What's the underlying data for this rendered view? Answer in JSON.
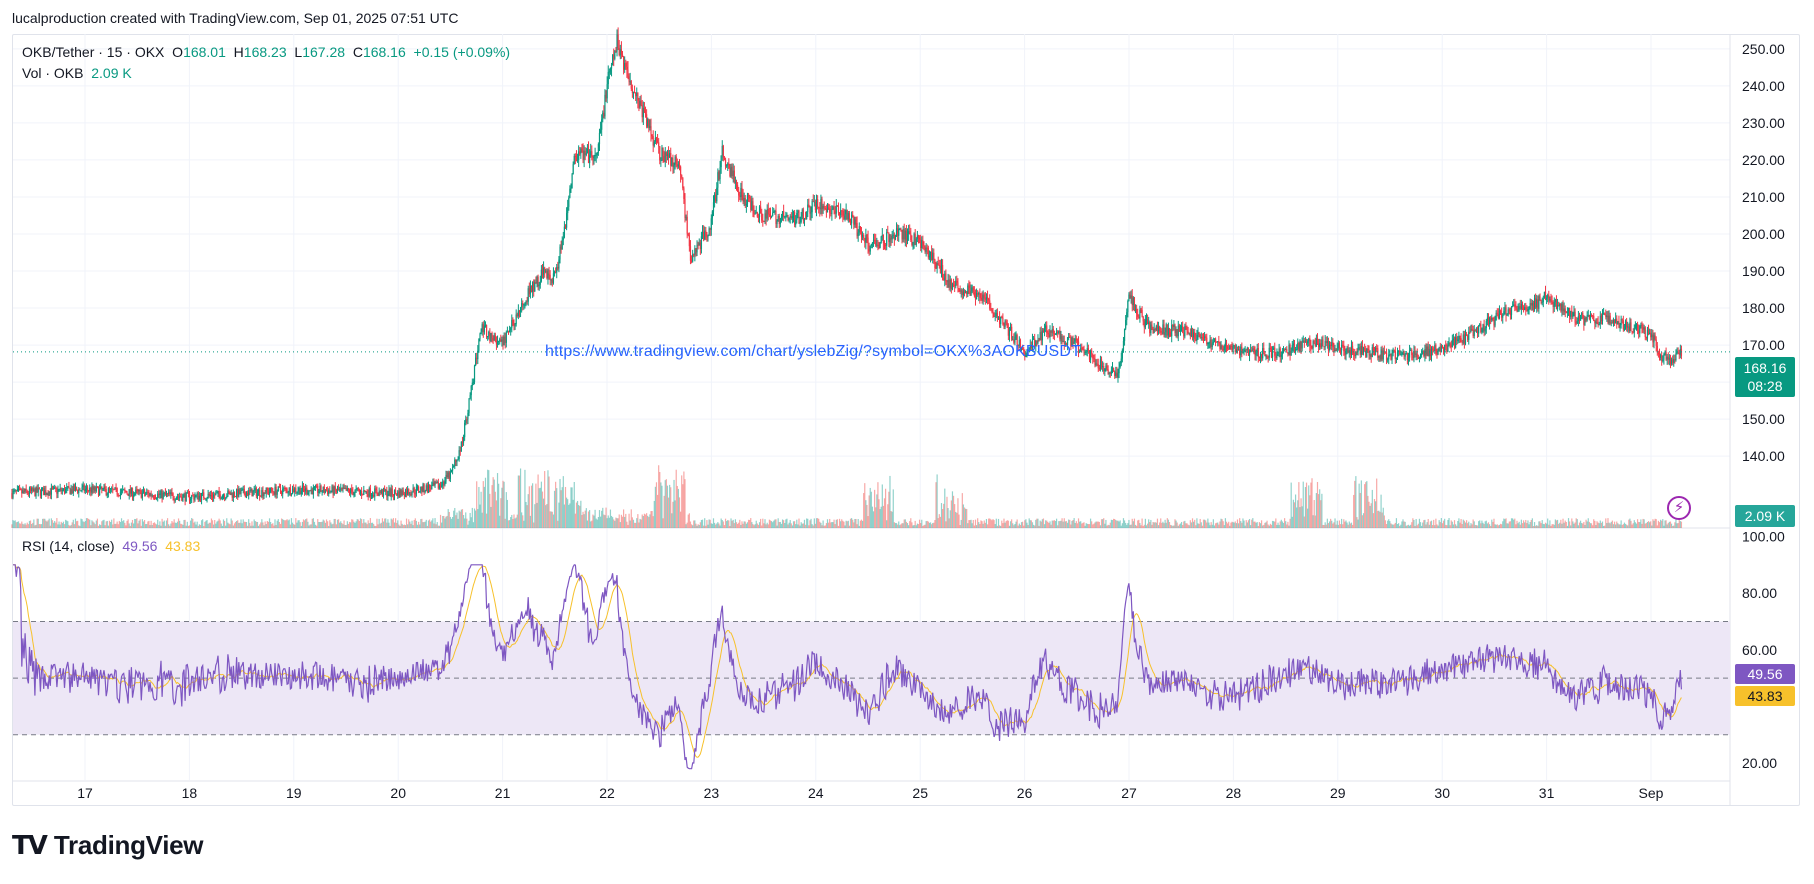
{
  "header": {
    "attribution": "lucalproduction created with TradingView.com, Sep 01, 2025 07:51 UTC"
  },
  "legend": {
    "symbol": "OKB/Tether · 15 · OKX",
    "open_label": "O",
    "open": "168.01",
    "high_label": "H",
    "high": "168.23",
    "low_label": "L",
    "low": "167.28",
    "close_label": "C",
    "close": "168.16",
    "change": "+0.15 (+0.09%)",
    "vol_label": "Vol · OKB",
    "vol_value": "2.09 K",
    "rsi_label": "RSI (14, close)",
    "rsi_value": "49.56",
    "rsi_ma_value": "43.83"
  },
  "url_text": "https://www.tradingview.com/chart/yslebZig/?symbol=OKX%3AOKBUSDT",
  "badges": {
    "price": "168.16",
    "countdown": "08:28",
    "volume": "2.09 K",
    "rsi": "49.56",
    "rsi_ma": "43.83"
  },
  "logo": {
    "mark": "TV",
    "name": "TradingView"
  },
  "colors": {
    "up": "#089981",
    "down": "#f23645",
    "vol_up": "#26a69a",
    "vol_down": "#ef5350",
    "rsi": "#7e57c2",
    "rsi_ma": "#f7c12b",
    "rsi_band": "#ede7f6",
    "grid": "#f0f3fa",
    "price_line": "#089981",
    "url": "#2962ff"
  },
  "chart_data": [
    {
      "type": "candlestick",
      "title": "OKB/Tether · 15 · OKX",
      "x_ticks": [
        "17",
        "18",
        "19",
        "20",
        "21",
        "22",
        "23",
        "24",
        "25",
        "26",
        "27",
        "28",
        "29",
        "30",
        "31",
        "Sep"
      ],
      "y_ticks": [
        "140.00",
        "150.00",
        "160.00",
        "170.00",
        "180.00",
        "190.00",
        "200.00",
        "210.00",
        "220.00",
        "230.00",
        "240.00",
        "250.00"
      ],
      "ylim": [
        126,
        254
      ],
      "last_price": 168.16,
      "price_path": {
        "x_day": [
          16.3,
          17.0,
          18.0,
          19.0,
          20.0,
          20.4,
          20.5,
          20.6,
          20.7,
          20.8,
          20.9,
          21.0,
          21.2,
          21.4,
          21.5,
          21.6,
          21.7,
          21.9,
          22.0,
          22.1,
          22.2,
          22.3,
          22.5,
          22.7,
          22.8,
          23.0,
          23.1,
          23.3,
          23.5,
          23.8,
          24.0,
          24.3,
          24.5,
          24.8,
          25.0,
          25.3,
          25.6,
          25.9,
          26.0,
          26.2,
          26.5,
          26.8,
          26.9,
          27.0,
          27.2,
          27.5,
          27.8,
          28.1,
          28.5,
          28.7,
          29.0,
          29.3,
          29.6,
          30.0,
          30.3,
          30.6,
          30.9,
          31.0,
          31.3,
          31.6,
          31.9,
          32.0,
          32.1,
          32.2,
          32.3
        ],
        "close": [
          130,
          131,
          129,
          131,
          130,
          132,
          135,
          142,
          158,
          175,
          172,
          170,
          182,
          190,
          188,
          203,
          222,
          220,
          240,
          252,
          243,
          236,
          222,
          218,
          193,
          203,
          222,
          210,
          205,
          204,
          208,
          205,
          197,
          200,
          198,
          186,
          183,
          172,
          168,
          174,
          170,
          163,
          162,
          183,
          174,
          174,
          171,
          168,
          168,
          171,
          169,
          168,
          167,
          169,
          173,
          179,
          181,
          183,
          177,
          177,
          174,
          173,
          167,
          166,
          168
        ]
      },
      "volume_peak_day": [
        20.9,
        21.3,
        21.6,
        22.6,
        24.6,
        25.3,
        28.7,
        29.3
      ],
      "ma_vol_label": "Vol · OKB"
    },
    {
      "type": "line",
      "title": "RSI (14, close)",
      "y_ticks": [
        "20.00",
        "60.00",
        "80.00",
        "100.00"
      ],
      "ylim": [
        14,
        103
      ],
      "bands": [
        30,
        50,
        70
      ],
      "series": [
        {
          "name": "RSI",
          "last": 49.56
        },
        {
          "name": "RSI MA",
          "last": 43.83
        }
      ]
    }
  ]
}
